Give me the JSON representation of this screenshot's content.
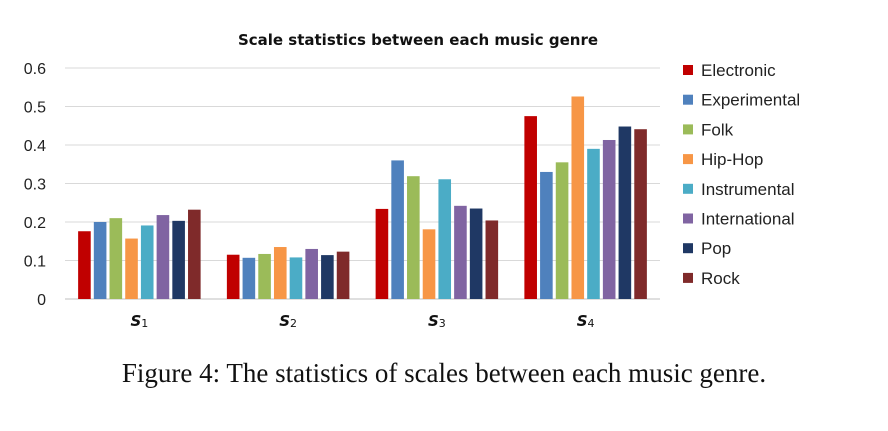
{
  "chart_data": {
    "type": "bar",
    "title": "Scale statistics between each music genre",
    "categories": [
      {
        "letter": "S",
        "sub": "1"
      },
      {
        "letter": "S",
        "sub": "2"
      },
      {
        "letter": "S",
        "sub": "3"
      },
      {
        "letter": "S",
        "sub": "4"
      }
    ],
    "ylim": [
      0,
      0.6
    ],
    "yticks": [
      "0",
      "0.1",
      "0.2",
      "0.3",
      "0.4",
      "0.5",
      "0.6"
    ],
    "grid": true,
    "legend_position": "right",
    "series": [
      {
        "name": "Electronic",
        "color": "#c00000",
        "values": [
          0.176,
          0.115,
          0.234,
          0.475
        ]
      },
      {
        "name": "Experimental",
        "color": "#4f81bd",
        "values": [
          0.2,
          0.107,
          0.36,
          0.33
        ]
      },
      {
        "name": "Folk",
        "color": "#9bbb59",
        "values": [
          0.21,
          0.117,
          0.319,
          0.355
        ]
      },
      {
        "name": "Hip-Hop",
        "color": "#f79646",
        "values": [
          0.157,
          0.135,
          0.181,
          0.526
        ]
      },
      {
        "name": "Instrumental",
        "color": "#4bacc6",
        "values": [
          0.191,
          0.108,
          0.311,
          0.39
        ]
      },
      {
        "name": "International",
        "color": "#8064a2",
        "values": [
          0.218,
          0.13,
          0.242,
          0.413
        ]
      },
      {
        "name": "Pop",
        "color": "#1f3864",
        "values": [
          0.203,
          0.114,
          0.235,
          0.448
        ]
      },
      {
        "name": "Rock",
        "color": "#7f2a2a",
        "values": [
          0.232,
          0.123,
          0.204,
          0.441
        ]
      }
    ]
  },
  "caption": "Figure 4: The statistics of scales between each music genre."
}
